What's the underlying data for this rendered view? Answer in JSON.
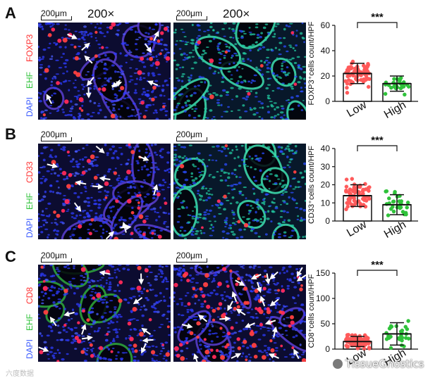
{
  "magnification": "200×",
  "scalebar_label": "200μm",
  "panels": [
    {
      "letter": "A",
      "marker": "FOXP3",
      "counterstain": "EHF",
      "nucleus": "DAPI"
    },
    {
      "letter": "B",
      "marker": "CD33",
      "counterstain": "EHF",
      "nucleus": "DAPI"
    },
    {
      "letter": "C",
      "marker": "CD8",
      "counterstain": "EHF",
      "nucleus": "DAPI"
    }
  ],
  "chart_data": [
    {
      "type": "scatter",
      "ylabel": "FOXP3⁺cells count/HPF",
      "ylim": [
        0,
        60
      ],
      "yticks": [
        0,
        20,
        40,
        60
      ],
      "categories": [
        "Low",
        "High"
      ],
      "significance": "***",
      "groups": [
        {
          "name": "Low",
          "color": "#ff5a5a",
          "mean": 22,
          "sd": 8,
          "n": 70
        },
        {
          "name": "High",
          "color": "#2fc23a",
          "mean": 14,
          "sd": 6,
          "n": 30
        }
      ]
    },
    {
      "type": "scatter",
      "ylabel": "CD33⁺cells count/HPF",
      "ylim": [
        0,
        40
      ],
      "yticks": [
        0,
        10,
        20,
        30,
        40
      ],
      "categories": [
        "Low",
        "High"
      ],
      "significance": "***",
      "groups": [
        {
          "name": "Low",
          "color": "#ff5a5a",
          "mean": 14,
          "sd": 6,
          "n": 65
        },
        {
          "name": "High",
          "color": "#2fc23a",
          "mean": 9,
          "sd": 5.5,
          "n": 30
        }
      ]
    },
    {
      "type": "scatter",
      "ylabel": "CD8⁺cells count/HPF",
      "ylim": [
        0,
        150
      ],
      "yticks": [
        0,
        50,
        100,
        150
      ],
      "categories": [
        "Low",
        "High"
      ],
      "significance": "***",
      "groups": [
        {
          "name": "Low",
          "color": "#ff5a5a",
          "mean": 15,
          "sd": 10,
          "n": 75
        },
        {
          "name": "High",
          "color": "#2fc23a",
          "mean": 30,
          "sd": 22,
          "n": 30
        }
      ]
    }
  ],
  "watermarks": {
    "left": "六度数据",
    "right": "TissueGnostics"
  }
}
